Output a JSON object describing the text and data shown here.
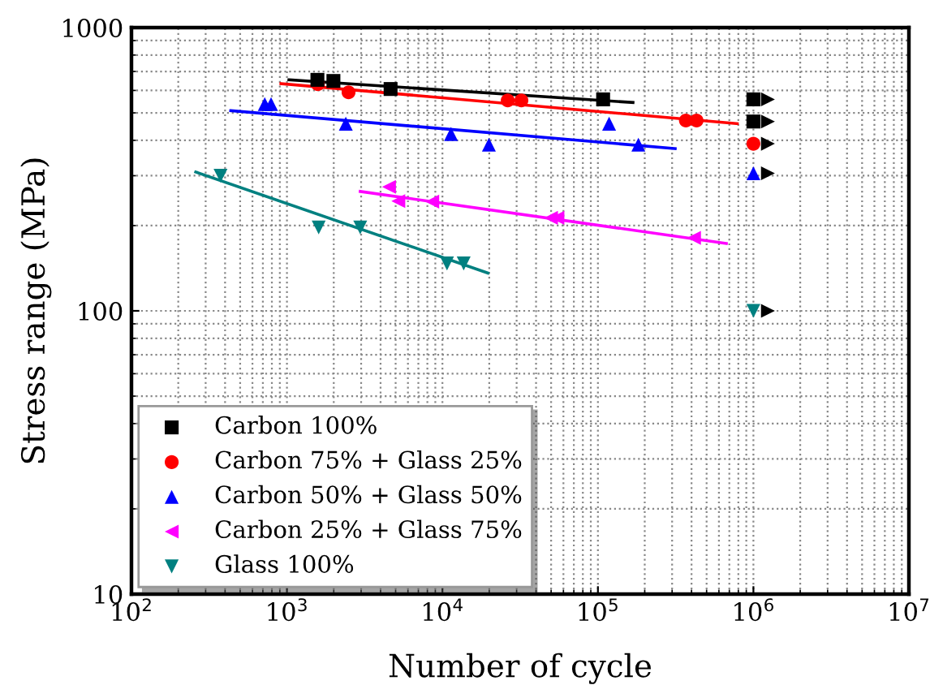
{
  "chart_data": {
    "type": "scatter",
    "xlabel": "Number of cycle",
    "ylabel": "Stress range (MPa)",
    "log": "xy",
    "grid": true,
    "legend": "bottom left",
    "xlim": [
      100,
      10000000
    ],
    "xticks": [
      {
        "value": 100,
        "label": "10$^{2}$"
      },
      {
        "value": 1000,
        "label": "10$^{3}$"
      },
      {
        "value": 10000,
        "label": "10$^{4}$"
      },
      {
        "value": 100000,
        "label": "10$^{5}$"
      },
      {
        "value": 1000000,
        "label": "10$^{6}$"
      },
      {
        "value": 10000000,
        "label": "10$^{7}$"
      }
    ],
    "ylim": [
      10,
      1000
    ],
    "yticks": [
      10,
      100,
      1000
    ],
    "series": [
      {
        "name": "Carbon 100%",
        "color": "#000000",
        "marker": "square",
        "x": [
          1570,
          1990,
          4640,
          108000,
          1000000,
          1000000
        ],
        "values": [
          654,
          648,
          607,
          558,
          558,
          466
        ]
      },
      {
        "name": "Carbon 75% + Glass 25%",
        "color": "#ff0000",
        "marker": "circle",
        "x": [
          1580,
          2490,
          26300,
          32200,
          368000,
          431000,
          1000000
        ],
        "values": [
          631,
          591,
          553,
          553,
          470,
          470,
          389
        ]
      },
      {
        "name": "Carbon 50% + Glass 50%",
        "color": "#0000ff",
        "marker": "triangle",
        "x": [
          720,
          790,
          2390,
          11350,
          19900,
          118000,
          182000,
          1000000
        ],
        "values": [
          537,
          537,
          458,
          421,
          386,
          458,
          386,
          306
        ]
      },
      {
        "name": "Carbon 25% + Glass 75%",
        "color": "#ff00ff",
        "marker": "triangle-left",
        "x": [
          4530,
          5200,
          8600,
          49900,
          54900,
          415000
        ],
        "values": [
          274,
          244,
          243,
          213,
          213,
          181
        ]
      },
      {
        "name": "Glass 100%",
        "color": "#008080",
        "marker": "triangle-down",
        "x": [
          374,
          1600,
          2960,
          10700,
          13700,
          1000000
        ],
        "values": [
          300,
          197,
          197,
          147,
          147,
          100
        ]
      },
      {
        "type": "line",
        "color": "#000000",
        "x": [
          1030,
          168000
        ],
        "values": [
          654,
          544
        ]
      },
      {
        "type": "line",
        "color": "#ff0000",
        "x": [
          915,
          787000
        ],
        "values": [
          634,
          458
        ]
      },
      {
        "type": "line",
        "color": "#0000ff",
        "x": [
          435,
          314000
        ],
        "values": [
          509,
          374
        ]
      },
      {
        "type": "line",
        "color": "#ff00ff",
        "x": [
          2960,
          670000
        ],
        "values": [
          264,
          173
        ]
      },
      {
        "type": "line",
        "color": "#008080",
        "x": [
          259,
          19600
        ],
        "values": [
          309,
          136
        ]
      },
      {
        "color": "#000000",
        "marker": "triangle-right",
        "x": [
          1240000,
          1240000,
          1240000,
          1240000,
          1240000
        ],
        "values": [
          558,
          466,
          389,
          306,
          100
        ]
      }
    ]
  }
}
